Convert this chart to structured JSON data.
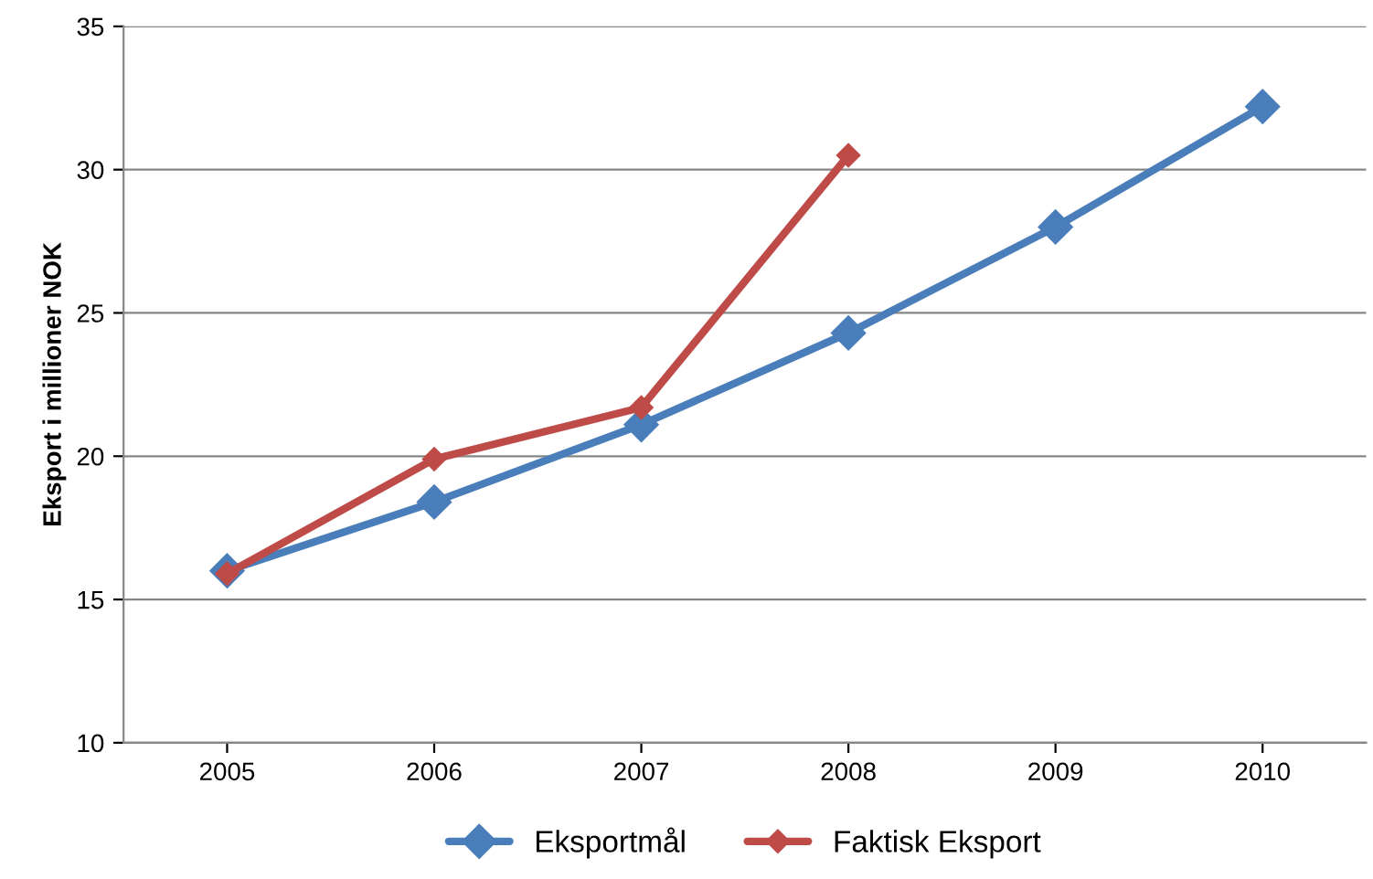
{
  "chart_data": {
    "type": "line",
    "ylabel": "Eksport i millioner NOK",
    "categories": [
      "2005",
      "2006",
      "2007",
      "2008",
      "2009",
      "2010"
    ],
    "series": [
      {
        "name": "Eksportmål",
        "color": "#4a7ebb",
        "values": [
          16.0,
          18.4,
          21.1,
          24.3,
          28.0,
          32.2
        ]
      },
      {
        "name": "Faktisk Eksport",
        "color": "#be4b48",
        "values": [
          15.9,
          19.9,
          21.7,
          30.5,
          null,
          null
        ]
      }
    ],
    "ylim": [
      10,
      35
    ],
    "yticks": [
      10,
      15,
      20,
      25,
      30,
      35
    ],
    "grid": "y",
    "legend": "bottom",
    "marker": "diamond",
    "line_style": "solid"
  }
}
